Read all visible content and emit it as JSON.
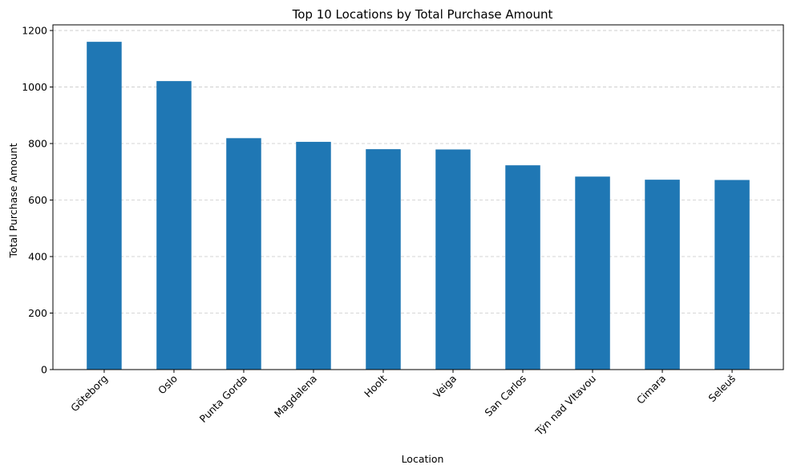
{
  "chart_data": {
    "type": "bar",
    "title": "Top 10 Locations by Total Purchase Amount",
    "xlabel": "Location",
    "ylabel": "Total Purchase Amount",
    "categories": [
      "Göteborg",
      "Oslo",
      "Punta Gorda",
      "Magdalena",
      "Hoolt",
      "Veiga",
      "San Carlos",
      "Týn nad Vltavou",
      "Cimara",
      "Seleuš"
    ],
    "values": [
      1160,
      1021,
      819,
      806,
      780,
      779,
      723,
      683,
      672,
      671
    ],
    "ylim": [
      0,
      1220
    ],
    "yticks": [
      0,
      200,
      400,
      600,
      800,
      1000,
      1200
    ],
    "grid": "y-dashed",
    "legend": "none",
    "bar_color": "#1f77b4"
  }
}
